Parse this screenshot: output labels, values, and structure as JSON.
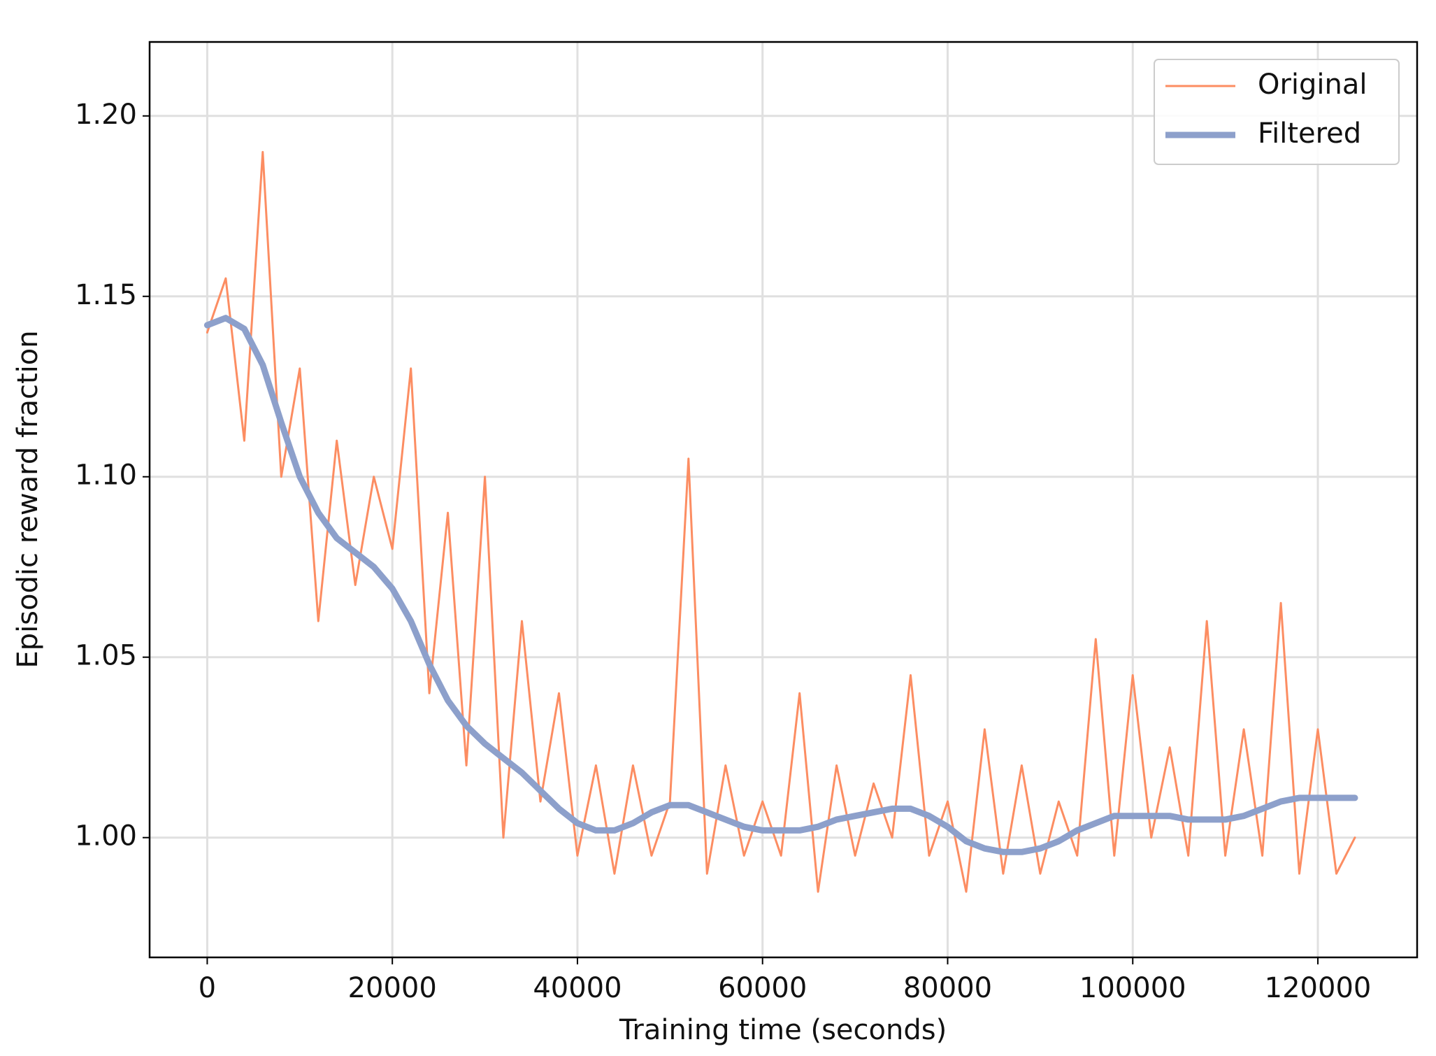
{
  "chart_data": {
    "type": "line",
    "x_label": "Training time (seconds)",
    "y_label": "Episodic reward fraction",
    "x": [
      0,
      2000,
      4000,
      6000,
      8000,
      10000,
      12000,
      14000,
      16000,
      18000,
      20000,
      22000,
      24000,
      26000,
      28000,
      30000,
      32000,
      34000,
      36000,
      38000,
      40000,
      42000,
      44000,
      46000,
      48000,
      50000,
      52000,
      54000,
      56000,
      58000,
      60000,
      62000,
      64000,
      66000,
      68000,
      70000,
      72000,
      74000,
      76000,
      78000,
      80000,
      82000,
      84000,
      86000,
      88000,
      90000,
      92000,
      94000,
      96000,
      98000,
      100000,
      102000,
      104000,
      106000,
      108000,
      110000,
      112000,
      114000,
      116000,
      118000,
      120000,
      122000,
      124000
    ],
    "series": [
      {
        "name": "Original",
        "color": "#fc8d62",
        "width": 3,
        "values": [
          1.14,
          1.155,
          1.11,
          1.19,
          1.1,
          1.13,
          1.06,
          1.11,
          1.07,
          1.1,
          1.08,
          1.13,
          1.04,
          1.09,
          1.02,
          1.1,
          1.0,
          1.06,
          1.01,
          1.04,
          0.995,
          1.02,
          0.99,
          1.02,
          0.995,
          1.01,
          1.105,
          0.99,
          1.02,
          0.995,
          1.01,
          0.995,
          1.04,
          0.985,
          1.02,
          0.995,
          1.015,
          1.0,
          1.045,
          0.995,
          1.01,
          0.985,
          1.03,
          0.99,
          1.02,
          0.99,
          1.01,
          0.995,
          1.055,
          0.995,
          1.045,
          1.0,
          1.025,
          0.995,
          1.06,
          0.995,
          1.03,
          0.995,
          1.065,
          0.99,
          1.03,
          0.99,
          1.0
        ]
      },
      {
        "name": "Filtered",
        "color": "#8da0cb",
        "width": 9,
        "values": [
          1.142,
          1.144,
          1.141,
          1.131,
          1.115,
          1.1,
          1.09,
          1.083,
          1.079,
          1.075,
          1.069,
          1.06,
          1.048,
          1.038,
          1.031,
          1.026,
          1.022,
          1.018,
          1.013,
          1.008,
          1.004,
          1.002,
          1.002,
          1.004,
          1.007,
          1.009,
          1.009,
          1.007,
          1.005,
          1.003,
          1.002,
          1.002,
          1.002,
          1.003,
          1.005,
          1.006,
          1.007,
          1.008,
          1.008,
          1.006,
          1.003,
          0.999,
          0.997,
          0.996,
          0.996,
          0.997,
          0.999,
          1.002,
          1.004,
          1.006,
          1.006,
          1.006,
          1.006,
          1.005,
          1.005,
          1.005,
          1.006,
          1.008,
          1.01,
          1.011,
          1.011,
          1.011,
          1.011
        ]
      }
    ],
    "xlim": [
      -6225,
      130725
    ],
    "ylim": [
      0.9668,
      1.2205
    ],
    "xticks": [
      0,
      20000,
      40000,
      60000,
      80000,
      100000,
      120000
    ],
    "yticks": [
      {
        "value": 1,
        "label": "1.00"
      },
      {
        "value": 1.05,
        "label": "1.05"
      },
      {
        "value": 1.1,
        "label": "1.10"
      },
      {
        "value": 1.15,
        "label": "1.15"
      },
      {
        "value": 1.2,
        "label": "1.20"
      }
    ],
    "grid": true,
    "legend": "upper right"
  }
}
